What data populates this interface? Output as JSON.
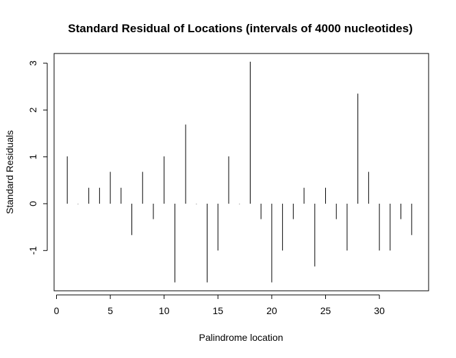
{
  "chart_data": {
    "type": "bar",
    "style": "histogram-spikes",
    "title": "Standard Residual of Locations (intervals of 4000 nucleotides)",
    "xlabel": "Palindrome location",
    "ylabel": "Standard Residuals",
    "xlim": [
      0,
      34
    ],
    "ylim": [
      -1.7,
      3.05
    ],
    "xticks": [
      0,
      5,
      10,
      15,
      20,
      25,
      30
    ],
    "yticks": [
      -1,
      0,
      1,
      2,
      3
    ],
    "x": [
      1,
      2,
      3,
      4,
      5,
      6,
      7,
      8,
      9,
      10,
      11,
      12,
      13,
      14,
      15,
      16,
      17,
      18,
      19,
      20,
      21,
      22,
      23,
      24,
      25,
      26,
      27,
      28,
      29,
      30,
      31,
      32,
      33
    ],
    "values": [
      1.01,
      0.0,
      0.34,
      0.34,
      0.68,
      0.34,
      -0.67,
      0.68,
      -0.33,
      1.01,
      -1.68,
      1.69,
      0.0,
      -1.68,
      -1.0,
      1.01,
      0.0,
      3.03,
      -0.33,
      -1.68,
      -1.0,
      -0.33,
      0.34,
      -1.34,
      0.34,
      -0.33,
      -1.0,
      2.35,
      0.68,
      -1.0,
      -1.0,
      -0.33,
      -0.67
    ],
    "grid": false,
    "bar_color": "#000000"
  }
}
